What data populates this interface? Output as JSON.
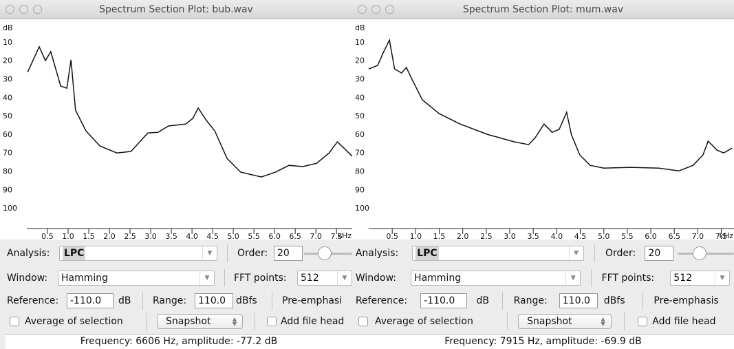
{
  "windows": [
    {
      "title": "Spectrum Section Plot: bub.wav",
      "plot": {
        "type": "line",
        "y_unit": "dB",
        "x_unit": "kHz",
        "xlim": [
          0,
          7.88
        ],
        "ylim": [
          0,
          110
        ],
        "yticks": [
          10,
          20,
          30,
          40,
          50,
          60,
          70,
          80,
          90,
          100
        ],
        "xticks": [
          0.5,
          {
            "value": 1,
            "label": "1.0"
          },
          1.5,
          {
            "value": 2,
            "label": "2.0"
          },
          2.5,
          {
            "value": 3,
            "label": "3.0"
          },
          3.5,
          {
            "value": 4,
            "label": "4.0"
          },
          4.5,
          {
            "value": 5,
            "label": "5.0"
          },
          5.5,
          {
            "value": 6,
            "label": "6.0"
          },
          6.5,
          {
            "value": 7,
            "label": "7.0"
          },
          7.5
        ],
        "series": [
          {
            "color": "#111111",
            "x": [
              0.02,
              0.3,
              0.45,
              0.58,
              0.82,
              0.97,
              1.07,
              1.18,
              1.43,
              1.77,
              2.18,
              2.52,
              2.93,
              3.18,
              3.43,
              3.85,
              4.02,
              4.15,
              4.35,
              4.55,
              4.85,
              5.18,
              5.68,
              6.02,
              6.35,
              6.68,
              7.02,
              7.32,
              7.52,
              7.68,
              7.88
            ],
            "values": [
              26,
              12.3,
              19.8,
              14.9,
              33.6,
              34.7,
              19.4,
              46.6,
              57.8,
              66,
              69.8,
              69,
              59,
              58.6,
              55.2,
              54.1,
              51.1,
              45.5,
              52.2,
              57.8,
              72.8,
              80.2,
              82.8,
              80.2,
              76.5,
              77.2,
              75.4,
              69.8,
              63.8,
              67.2,
              71.6
            ]
          }
        ]
      },
      "controls": {
        "analysis_label": "Analysis:",
        "analysis_value": "LPC",
        "order_label": "Order:",
        "order_value": "20",
        "window_label": "Window:",
        "window_value": "Hamming",
        "fft_label": "FFT points:",
        "fft_value": "512",
        "reference_label": "Reference:",
        "reference_value": "-110.0",
        "reference_unit": "dB",
        "range_label": "Range:",
        "range_value": "110.0",
        "range_unit": "dBfs",
        "preemphasis_label": "Pre-emphasi",
        "average_label": "Average of selection",
        "snapshot_label": "Snapshot",
        "add_file_head_label": "Add file head"
      },
      "status": "Frequency: 6606 Hz, amplitude: -77.2 dB"
    },
    {
      "title": "Spectrum Section Plot: mum.wav",
      "plot": {
        "type": "line",
        "y_unit": "dB",
        "x_unit": "kHz",
        "xlim": [
          0,
          7.77
        ],
        "ylim": [
          0,
          110
        ],
        "yticks": [
          10,
          20,
          30,
          40,
          50,
          60,
          70,
          80,
          90,
          100
        ],
        "xticks": [
          0.5,
          {
            "value": 1,
            "label": "1.0"
          },
          1.5,
          {
            "value": 2,
            "label": "2.0"
          },
          2.5,
          {
            "value": 3,
            "label": "3.0"
          },
          3.5,
          {
            "value": 4,
            "label": "4.0"
          },
          4.5,
          {
            "value": 5,
            "label": "5.0"
          },
          5.5,
          {
            "value": 6,
            "label": "6.0"
          },
          6.5,
          {
            "value": 7,
            "label": "7.0"
          },
          7.5
        ],
        "series": [
          {
            "color": "#111111",
            "x": [
              0,
              0.19,
              0.3,
              0.44,
              0.55,
              0.7,
              0.8,
              0.92,
              1.14,
              1.5,
              1.94,
              2.52,
              3.1,
              3.4,
              3.54,
              3.73,
              3.9,
              4.05,
              4.21,
              4.31,
              4.49,
              4.71,
              5.0,
              5.58,
              6.17,
              6.6,
              6.9,
              7.11,
              7.22,
              7.41,
              7.55,
              7.73
            ],
            "values": [
              24.3,
              22.4,
              16,
              8.6,
              24.3,
              26.5,
              23.5,
              29.9,
              41,
              48.5,
              54.1,
              59.7,
              63.8,
              65.3,
              61.6,
              54.1,
              58.6,
              57.1,
              47.8,
              59.7,
              70.9,
              76.5,
              78,
              77.6,
              78,
              79.5,
              76.5,
              70.9,
              63.4,
              68.3,
              69.8,
              67.2
            ]
          }
        ]
      },
      "controls": {
        "analysis_label": "Analysis:",
        "analysis_value": "LPC",
        "order_label": "Order:",
        "order_value": "20",
        "window_label": "Window:",
        "window_value": "Hamming",
        "fft_label": "FFT points:",
        "fft_value": "512",
        "reference_label": "Reference:",
        "reference_value": "-110.0",
        "reference_unit": "dB",
        "range_label": "Range:",
        "range_value": "110.0",
        "range_unit": "dBfs",
        "preemphasis_label": "Pre-emphasis",
        "average_label": "Average of selection",
        "snapshot_label": "Snapshot",
        "add_file_head_label": "Add file head"
      },
      "status": "Frequency: 7915 Hz, amplitude: -69.9 dB"
    }
  ]
}
